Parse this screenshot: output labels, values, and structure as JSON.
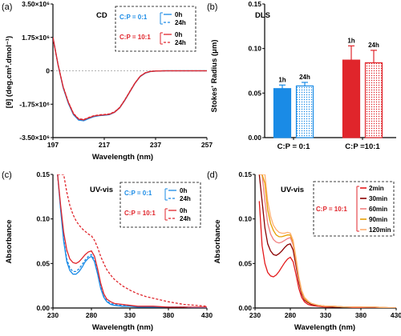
{
  "chart_data": [
    {
      "panel": "(a)",
      "type": "line",
      "title": "CD",
      "xlabel": "Wavelength (nm)",
      "ylabel": "[θ] (deg.cm².dmol⁻¹)",
      "xlim": [
        197,
        257
      ],
      "ylim": [
        -3500000,
        3500000
      ],
      "xticks": [
        "197",
        "217",
        "237",
        "257"
      ],
      "yticks": [
        "3.50×10⁶",
        "1.75×10⁶",
        "0",
        "-1.75×10⁶",
        "-3.50×10⁶"
      ],
      "legend": {
        "groups": [
          {
            "label": "C:P = 0:1",
            "color": "#1a8be6",
            "entries": [
              "0h",
              "24h"
            ]
          },
          {
            "label": "C:P = 10:1",
            "color": "#e0252b",
            "entries": [
              "0h",
              "24h"
            ]
          }
        ]
      },
      "x": [
        197,
        199,
        201,
        203,
        205,
        207,
        209,
        211,
        213,
        215,
        217,
        219,
        221,
        223,
        225,
        227,
        229,
        231,
        233,
        235,
        237,
        239,
        241,
        243,
        245,
        247,
        249,
        251,
        253,
        255,
        257
      ],
      "series": [
        {
          "name": "0h",
          "group": "C:P = 0:1",
          "color": "#1a8be6",
          "dash": false,
          "values": [
            1750000,
            300000,
            -900000,
            -1700000,
            -2300000,
            -2580000,
            -2620000,
            -2500000,
            -2400000,
            -2350000,
            -2330000,
            -2300000,
            -2180000,
            -1950000,
            -1550000,
            -1100000,
            -650000,
            -300000,
            -120000,
            -40000,
            -15000,
            -5000,
            0,
            0,
            0,
            0,
            0,
            0,
            0,
            0,
            0
          ]
        },
        {
          "name": "24h",
          "group": "C:P = 0:1",
          "color": "#1a8be6",
          "dash": true,
          "values": [
            1750000,
            300000,
            -880000,
            -1680000,
            -2280000,
            -2560000,
            -2600000,
            -2480000,
            -2380000,
            -2330000,
            -2310000,
            -2280000,
            -2160000,
            -1930000,
            -1530000,
            -1080000,
            -640000,
            -290000,
            -110000,
            -35000,
            -12000,
            -4000,
            0,
            0,
            0,
            0,
            0,
            0,
            0,
            0,
            0
          ]
        },
        {
          "name": "0h",
          "group": "C:P = 10:1",
          "color": "#e0252b",
          "dash": false,
          "values": [
            1750000,
            320000,
            -860000,
            -1650000,
            -2250000,
            -2530000,
            -2570000,
            -2460000,
            -2370000,
            -2330000,
            -2310000,
            -2280000,
            -2170000,
            -1940000,
            -1540000,
            -1090000,
            -640000,
            -290000,
            -110000,
            -35000,
            -12000,
            -4000,
            0,
            0,
            0,
            0,
            0,
            0,
            0,
            0,
            0
          ]
        },
        {
          "name": "24h",
          "group": "C:P = 10:1",
          "color": "#e0252b",
          "dash": true,
          "values": [
            1750000,
            320000,
            -840000,
            -1630000,
            -2230000,
            -2510000,
            -2550000,
            -2440000,
            -2350000,
            -2310000,
            -2290000,
            -2260000,
            -2150000,
            -1920000,
            -1520000,
            -1070000,
            -630000,
            -280000,
            -100000,
            -30000,
            -10000,
            -3000,
            0,
            0,
            0,
            0,
            0,
            0,
            0,
            0,
            0
          ]
        }
      ]
    },
    {
      "panel": "(b)",
      "type": "bar",
      "title": "DLS",
      "xlabel": "",
      "ylabel": "Stokes' Radius (μm)",
      "ylim": [
        0,
        0.15
      ],
      "yticks": [
        "0.00",
        "0.05",
        "0.10",
        "0.15"
      ],
      "groups": [
        {
          "label": "C:P = 0:1",
          "color": "#1a8be6",
          "bars": [
            {
              "label": "1h",
              "value": 0.055,
              "err": 0.004,
              "fill": "solid"
            },
            {
              "label": "24h",
              "value": 0.058,
              "err": 0.004,
              "fill": "dotted"
            }
          ]
        },
        {
          "label": "C:P =10:1",
          "color": "#e0252b",
          "bars": [
            {
              "label": "1h",
              "value": 0.087,
              "err": 0.016,
              "fill": "solid"
            },
            {
              "label": "24h",
              "value": 0.084,
              "err": 0.014,
              "fill": "dotted"
            }
          ]
        }
      ]
    },
    {
      "panel": "(c)",
      "type": "line",
      "title": "UV-vis",
      "xlabel": "Wavelength (nm)",
      "ylabel": "Absorbance",
      "xlim": [
        230,
        430
      ],
      "ylim": [
        0,
        0.15
      ],
      "xticks": [
        "230",
        "280",
        "330",
        "380",
        "430"
      ],
      "yticks": [
        "0.00",
        "0.05",
        "0.10",
        "0.15"
      ],
      "legend": {
        "groups": [
          {
            "label": "C:P = 0:1",
            "color": "#1a8be6",
            "entries": [
              "0h",
              "24h"
            ]
          },
          {
            "label": "C:P = 10:1",
            "color": "#e0252b",
            "entries": [
              "0h",
              "24h"
            ]
          }
        ]
      },
      "x": [
        236,
        240,
        244,
        248,
        252,
        256,
        260,
        264,
        268,
        272,
        276,
        280,
        284,
        288,
        292,
        296,
        300,
        305,
        310,
        320,
        330,
        340,
        350,
        360,
        380,
        400,
        430
      ],
      "series": [
        {
          "name": "0h",
          "group": "C:P = 0:1",
          "color": "#1a8be6",
          "dash": false,
          "values": [
            0.15,
            0.11,
            0.075,
            0.052,
            0.042,
            0.038,
            0.038,
            0.041,
            0.046,
            0.052,
            0.056,
            0.058,
            0.052,
            0.038,
            0.022,
            0.012,
            0.007,
            0.004,
            0.003,
            0.002,
            0.002,
            0.001,
            0.001,
            0.001,
            0.001,
            0.001,
            0.0
          ]
        },
        {
          "name": "24h",
          "group": "C:P = 0:1",
          "color": "#1a8be6",
          "dash": true,
          "values": [
            0.15,
            0.112,
            0.078,
            0.055,
            0.045,
            0.041,
            0.041,
            0.044,
            0.049,
            0.054,
            0.058,
            0.06,
            0.054,
            0.04,
            0.024,
            0.013,
            0.008,
            0.005,
            0.004,
            0.003,
            0.002,
            0.002,
            0.001,
            0.001,
            0.001,
            0.001,
            0.0
          ]
        },
        {
          "name": "0h",
          "group": "C:P = 10:1",
          "color": "#e0252b",
          "dash": false,
          "values": [
            0.15,
            0.115,
            0.085,
            0.065,
            0.055,
            0.051,
            0.05,
            0.052,
            0.056,
            0.06,
            0.063,
            0.064,
            0.058,
            0.044,
            0.028,
            0.016,
            0.01,
            0.007,
            0.005,
            0.004,
            0.003,
            0.002,
            0.002,
            0.002,
            0.001,
            0.001,
            0.001
          ]
        },
        {
          "name": "24h",
          "group": "C:P = 10:1",
          "color": "#e0252b",
          "dash": true,
          "values": [
            0.15,
            0.15,
            0.15,
            0.13,
            0.115,
            0.105,
            0.098,
            0.093,
            0.089,
            0.086,
            0.083,
            0.081,
            0.076,
            0.068,
            0.058,
            0.05,
            0.043,
            0.037,
            0.032,
            0.025,
            0.02,
            0.016,
            0.013,
            0.011,
            0.007,
            0.004,
            0.002
          ]
        }
      ]
    },
    {
      "panel": "(d)",
      "type": "line",
      "title": "UV-vis",
      "xlabel": "Wavelength (nm)",
      "ylabel": "Absorbance",
      "xlim": [
        230,
        430
      ],
      "ylim": [
        0,
        0.15
      ],
      "xticks": [
        "230",
        "280",
        "330",
        "380",
        "430"
      ],
      "yticks": [
        "0.00",
        "0.05",
        "0.10",
        "0.15"
      ],
      "legend": {
        "group": "C:P = 10:1",
        "entries": [
          "2min",
          "30min",
          "60min",
          "90min",
          "120min"
        ]
      },
      "x": [
        236,
        240,
        244,
        248,
        252,
        256,
        260,
        264,
        268,
        272,
        276,
        280,
        284,
        288,
        292,
        296,
        300,
        305,
        310,
        320,
        330,
        340,
        360,
        380,
        400,
        430
      ],
      "series": [
        {
          "name": "2min",
          "color": "#e41a1c",
          "values": [
            0.12,
            0.07,
            0.05,
            0.04,
            0.036,
            0.035,
            0.037,
            0.041,
            0.046,
            0.051,
            0.055,
            0.057,
            0.052,
            0.038,
            0.022,
            0.012,
            0.007,
            0.004,
            0.003,
            0.002,
            0.001,
            0.001,
            0.001,
            0.0,
            0.0,
            0.0
          ]
        },
        {
          "name": "30min",
          "color": "#8b0000",
          "values": [
            0.15,
            0.12,
            0.09,
            0.072,
            0.064,
            0.06,
            0.059,
            0.061,
            0.064,
            0.068,
            0.071,
            0.072,
            0.065,
            0.048,
            0.029,
            0.016,
            0.009,
            0.006,
            0.004,
            0.003,
            0.002,
            0.001,
            0.001,
            0.001,
            0.0,
            0.0
          ]
        },
        {
          "name": "60min",
          "color": "#f08080",
          "values": [
            0.15,
            0.15,
            0.12,
            0.095,
            0.083,
            0.077,
            0.074,
            0.073,
            0.074,
            0.076,
            0.078,
            0.079,
            0.071,
            0.053,
            0.032,
            0.018,
            0.01,
            0.007,
            0.005,
            0.003,
            0.002,
            0.002,
            0.001,
            0.001,
            0.001,
            0.0
          ]
        },
        {
          "name": "90min",
          "color": "#e69f00",
          "values": [
            0.15,
            0.15,
            0.14,
            0.11,
            0.095,
            0.087,
            0.082,
            0.08,
            0.08,
            0.081,
            0.082,
            0.082,
            0.074,
            0.055,
            0.034,
            0.019,
            0.011,
            0.007,
            0.005,
            0.003,
            0.002,
            0.002,
            0.001,
            0.001,
            0.001,
            0.0
          ]
        },
        {
          "name": "120min",
          "color": "#ffb070",
          "values": [
            0.15,
            0.15,
            0.15,
            0.12,
            0.103,
            0.093,
            0.088,
            0.085,
            0.084,
            0.084,
            0.085,
            0.084,
            0.076,
            0.057,
            0.035,
            0.02,
            0.012,
            0.008,
            0.005,
            0.003,
            0.002,
            0.002,
            0.001,
            0.001,
            0.001,
            0.0
          ]
        }
      ]
    }
  ]
}
